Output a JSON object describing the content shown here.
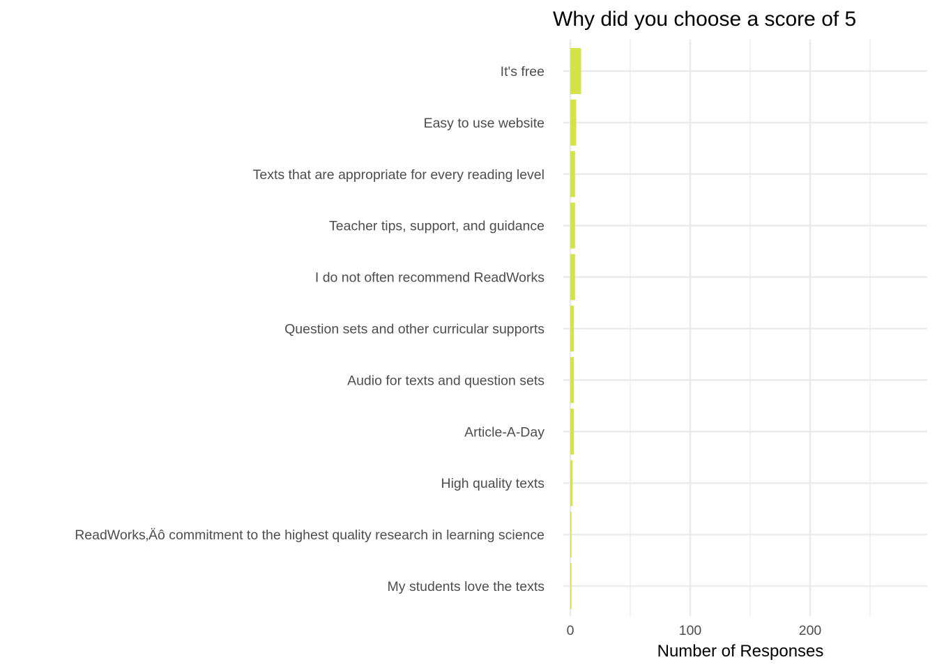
{
  "chart_data": {
    "type": "bar",
    "orientation": "horizontal",
    "title": "Why did you choose a score of 5",
    "xlabel": "Number of Responses",
    "ylabel": "",
    "categories": [
      "It's free",
      "Easy to use website",
      "Texts that are appropriate for every reading level",
      "Teacher tips, support, and guidance",
      "I do not often recommend ReadWorks",
      "Question sets and other curricular supports",
      "Audio for texts and question sets",
      "Article-A-Day",
      "High quality texts",
      "ReadWorks‚Äô commitment to the highest quality research in learning science",
      "My students love the texts"
    ],
    "values": [
      9,
      5,
      4,
      4,
      4,
      3,
      3,
      3,
      2,
      1,
      1
    ],
    "xlim": [
      0,
      300
    ],
    "x_ticks": [
      0,
      100,
      200
    ],
    "x_minor_ticks": [
      50,
      150,
      250
    ],
    "grid": true,
    "legend": "none",
    "colors": {
      "bar": "#D5E34A",
      "grid": "#EBEBEB",
      "tick_text": "#4D4D4D",
      "title_text": "#000000"
    }
  }
}
